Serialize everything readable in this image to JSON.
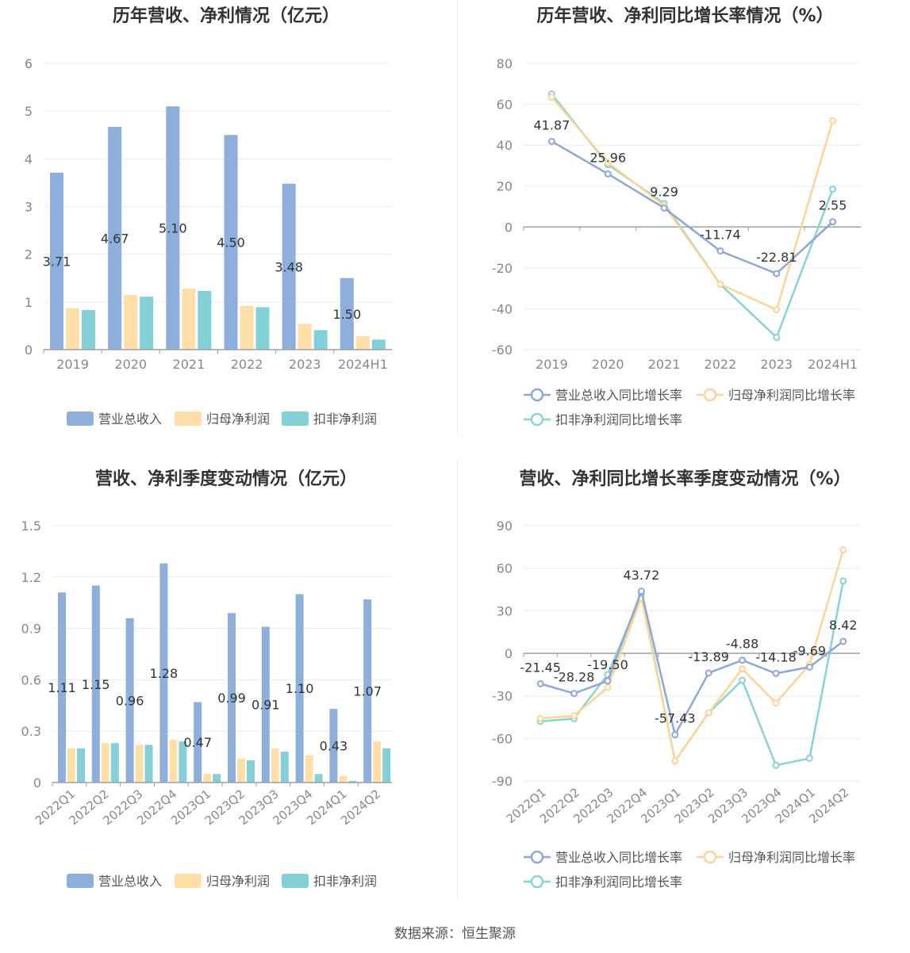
{
  "source_text": "数据来源：恒生聚源",
  "colors": {
    "revenue": "#8eaedb",
    "net_profit": "#fddfa7",
    "deducted": "#83d1d6",
    "growth_revenue": "#8ea7d8",
    "growth_net": "#fcd594",
    "growth_deducted": "#88d3d4"
  },
  "chart_data": [
    {
      "id": "annual_bar",
      "type": "bar",
      "title": "历年营收、净利情况（亿元）",
      "categories": [
        "2019",
        "2020",
        "2021",
        "2022",
        "2023",
        "2024H1"
      ],
      "ylim": [
        0,
        6
      ],
      "yticks": [
        "0",
        "1",
        "2",
        "3",
        "4",
        "5",
        "6"
      ],
      "series": [
        {
          "name": "营业总收入",
          "values": [
            3.71,
            4.67,
            5.1,
            4.5,
            3.48,
            1.5
          ],
          "labels": [
            "3.71",
            "4.67",
            "5.10",
            "4.50",
            "3.48",
            "1.50"
          ]
        },
        {
          "name": "归母净利润",
          "values": [
            0.87,
            1.15,
            1.28,
            0.92,
            0.54,
            0.28
          ]
        },
        {
          "name": "扣非净利润",
          "values": [
            0.83,
            1.11,
            1.23,
            0.89,
            0.41,
            0.21
          ]
        }
      ],
      "legend": "bottom",
      "grid": true
    },
    {
      "id": "annual_growth",
      "type": "line",
      "title": "历年营收、净利同比增长率情况（%）",
      "categories": [
        "2019",
        "2020",
        "2021",
        "2022",
        "2023",
        "2024H1"
      ],
      "ylim": [
        -60,
        80
      ],
      "yticks": [
        "-60",
        "-40",
        "-20",
        "0",
        "20",
        "40",
        "60",
        "80"
      ],
      "series": [
        {
          "name": "营业总收入同比增长率",
          "values": [
            41.87,
            25.96,
            9.29,
            -11.74,
            -22.81,
            2.55
          ],
          "labels": [
            "41.87",
            "25.96",
            "9.29",
            "-11.74",
            "-22.81",
            "2.55"
          ]
        },
        {
          "name": "归母净利润同比增长率",
          "values": [
            63.5,
            31.5,
            10.5,
            -28.0,
            -40.5,
            52.0
          ]
        },
        {
          "name": "扣非净利润同比增长率",
          "values": [
            65.0,
            30.5,
            11.5,
            -28.0,
            -54.0,
            18.5
          ]
        }
      ],
      "legend": "bottom",
      "grid": true
    },
    {
      "id": "quarter_bar",
      "type": "bar",
      "title": "营收、净利季度变动情况（亿元）",
      "categories": [
        "2022Q1",
        "2022Q2",
        "2022Q3",
        "2022Q4",
        "2023Q1",
        "2023Q2",
        "2023Q3",
        "2023Q4",
        "2024Q1",
        "2024Q2"
      ],
      "ylim": [
        0,
        1.5
      ],
      "yticks": [
        "0",
        "0.3",
        "0.6",
        "0.9",
        "1.2",
        "1.5"
      ],
      "series": [
        {
          "name": "营业总收入",
          "values": [
            1.11,
            1.15,
            0.96,
            1.28,
            0.47,
            0.99,
            0.91,
            1.1,
            0.43,
            1.07
          ],
          "labels": [
            "1.11",
            "1.15",
            "0.96",
            "1.28",
            "0.47",
            "0.99",
            "0.91",
            "1.10",
            "0.43",
            "1.07"
          ]
        },
        {
          "name": "归母净利润",
          "values": [
            0.2,
            0.23,
            0.22,
            0.25,
            0.05,
            0.14,
            0.2,
            0.16,
            0.04,
            0.24
          ]
        },
        {
          "name": "扣非净利润",
          "values": [
            0.2,
            0.23,
            0.22,
            0.24,
            0.05,
            0.13,
            0.18,
            0.05,
            0.01,
            0.2
          ]
        }
      ],
      "legend": "bottom",
      "grid": true
    },
    {
      "id": "quarter_growth",
      "type": "line",
      "title": "营收、净利同比增长率季度变动情况（%）",
      "categories": [
        "2022Q1",
        "2022Q2",
        "2022Q3",
        "2022Q4",
        "2023Q1",
        "2023Q2",
        "2023Q3",
        "2023Q4",
        "2024Q1",
        "2024Q2"
      ],
      "ylim": [
        -90,
        90
      ],
      "yticks": [
        "-90",
        "-60",
        "-30",
        "0",
        "30",
        "60",
        "90"
      ],
      "series": [
        {
          "name": "营业总收入同比增长率",
          "values": [
            -21.45,
            -28.28,
            -19.5,
            43.72,
            -57.43,
            -13.89,
            -4.88,
            -14.18,
            -9.69,
            8.42
          ],
          "labels": [
            "-21.45",
            "-28.28",
            "-19.50",
            "43.72",
            "-57.43",
            "-13.89",
            "-4.88",
            "-14.18",
            "-9.69",
            "8.42"
          ]
        },
        {
          "name": "归母净利润同比增长率",
          "values": [
            -46.0,
            -44.0,
            -24.0,
            39.0,
            -76.0,
            -42.0,
            -11.0,
            -35.0,
            -8.0,
            73.0
          ]
        },
        {
          "name": "扣非净利润同比增长率",
          "values": [
            -48.0,
            -46.0,
            -15.0,
            41.0,
            -76.0,
            -42.0,
            -19.0,
            -79.0,
            -74.0,
            51.0
          ]
        }
      ],
      "legend": "bottom",
      "grid": true
    }
  ]
}
